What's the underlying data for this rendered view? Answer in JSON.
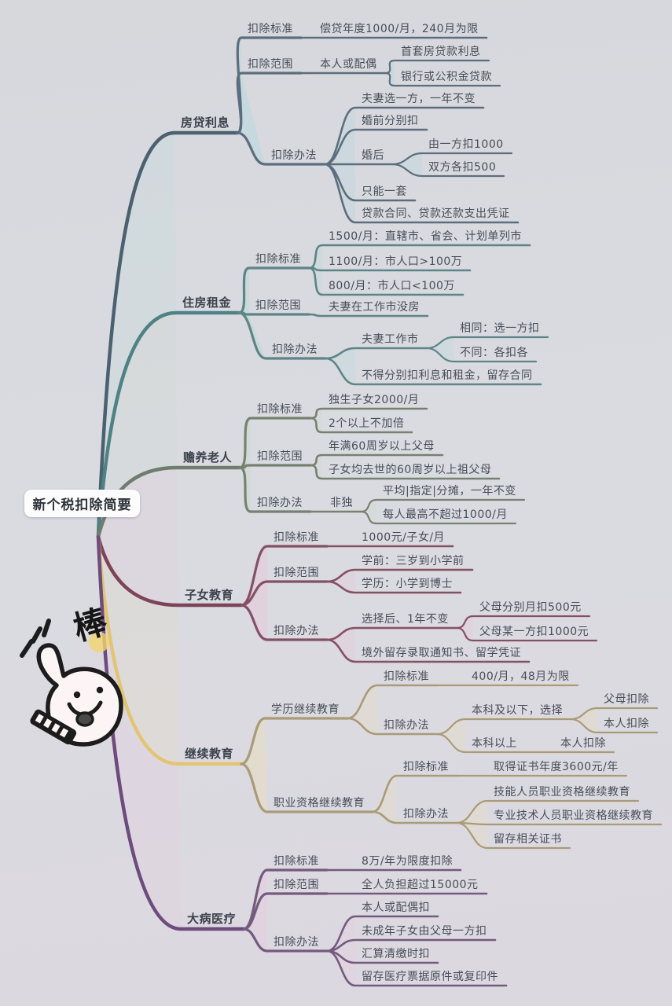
{
  "mindmap": {
    "root": "新个税扣除简要",
    "branches": [
      {
        "label": "房贷利息",
        "color": "#4c6170",
        "children": [
          {
            "label": "扣除标准",
            "children": [
              {
                "label": "偿贷年度1000/月，240月为限"
              }
            ]
          },
          {
            "label": "扣除范围",
            "children": [
              {
                "label": "本人或配偶",
                "children": [
                  {
                    "label": "首套房贷款利息"
                  },
                  {
                    "label": "银行或公积金贷款"
                  }
                ]
              }
            ]
          },
          {
            "label": "扣除办法",
            "children": [
              {
                "label": "夫妻选一方，一年不变"
              },
              {
                "label": "婚前分别扣"
              },
              {
                "label": "婚后",
                "children": [
                  {
                    "label": "由一方扣1000"
                  },
                  {
                    "label": "双方各扣500"
                  }
                ]
              },
              {
                "label": "只能一套"
              },
              {
                "label": "贷款合同、贷款还款支出凭证"
              }
            ]
          }
        ]
      },
      {
        "label": "住房租金",
        "color": "#4e8285",
        "children": [
          {
            "label": "扣除标准",
            "children": [
              {
                "label": "1500/月：直辖市、省会、计划单列市"
              },
              {
                "label": "1100/月：市人口>100万"
              },
              {
                "label": "800/月：市人口<100万"
              }
            ]
          },
          {
            "label": "扣除范围",
            "children": [
              {
                "label": "夫妻在工作市没房"
              }
            ]
          },
          {
            "label": "扣除办法",
            "children": [
              {
                "label": "夫妻工作市",
                "children": [
                  {
                    "label": "相同：选一方扣"
                  },
                  {
                    "label": "不同：各扣各"
                  }
                ]
              },
              {
                "label": "不得分别扣利息和租金，留存合同"
              }
            ]
          }
        ]
      },
      {
        "label": "赡养老人",
        "color": "#6e7d6d",
        "children": [
          {
            "label": "扣除标准",
            "children": [
              {
                "label": "独生子女2000/月"
              },
              {
                "label": "2个以上不加倍"
              }
            ]
          },
          {
            "label": "扣除范围",
            "children": [
              {
                "label": "年满60周岁以上父母"
              },
              {
                "label": "子女均去世的60周岁以上祖父母"
              }
            ]
          },
          {
            "label": "扣除办法",
            "children": [
              {
                "label": "非独",
                "children": [
                  {
                    "label": "平均|指定|分摊，一年不变"
                  },
                  {
                    "label": "每人最高不超过1000/月"
                  }
                ]
              }
            ]
          }
        ]
      },
      {
        "label": "子女教育",
        "color": "#7d4458",
        "children": [
          {
            "label": "扣除标准",
            "children": [
              {
                "label": "1000元/子女/月"
              }
            ]
          },
          {
            "label": "扣除范围",
            "children": [
              {
                "label": "学前：三岁到小学前"
              },
              {
                "label": "学历：小学到博士"
              }
            ]
          },
          {
            "label": "扣除办法",
            "children": [
              {
                "label": "选择后、1年不变",
                "children": [
                  {
                    "label": "父母分别月扣500元"
                  },
                  {
                    "label": "父母某一方扣1000元"
                  }
                ]
              },
              {
                "label": "境外留存录取通知书、留学凭证"
              }
            ]
          }
        ]
      },
      {
        "label": "继续教育",
        "color": "#e3c474",
        "children": [
          {
            "label": "学历继续教育",
            "children": [
              {
                "label": "扣除标准",
                "children": [
                  {
                    "label": "400/月，48月为限"
                  }
                ]
              },
              {
                "label": "扣除办法",
                "children": [
                  {
                    "label": "本科及以下，选择",
                    "children": [
                      {
                        "label": "父母扣除"
                      },
                      {
                        "label": "本人扣除"
                      }
                    ]
                  },
                  {
                    "label": "本科以上",
                    "children": [
                      {
                        "label": "本人扣除"
                      }
                    ]
                  }
                ]
              }
            ]
          },
          {
            "label": "职业资格继续教育",
            "children": [
              {
                "label": "扣除标准",
                "children": [
                  {
                    "label": "取得证书年度3600元/年"
                  }
                ]
              },
              {
                "label": "扣除办法",
                "children": [
                  {
                    "label": "技能人员职业资格继续教育"
                  },
                  {
                    "label": "专业技术人员职业资格继续教育"
                  },
                  {
                    "label": "留存相关证书"
                  }
                ]
              }
            ]
          }
        ]
      },
      {
        "label": "大病医疗",
        "color": "#6d4b7d",
        "children": [
          {
            "label": "扣除标准",
            "children": [
              {
                "label": "8万/年为限度扣除"
              }
            ]
          },
          {
            "label": "扣除范围",
            "children": [
              {
                "label": "全人负担超过15000元"
              }
            ]
          },
          {
            "label": "扣除办法",
            "children": [
              {
                "label": "本人或配偶扣"
              },
              {
                "label": "未成年子女由父母一方扣"
              },
              {
                "label": "汇算清缴时扣"
              },
              {
                "label": "留存医疗票据原件或复印件"
              }
            ]
          }
        ]
      }
    ]
  },
  "stamp": {
    "character": "棒"
  }
}
